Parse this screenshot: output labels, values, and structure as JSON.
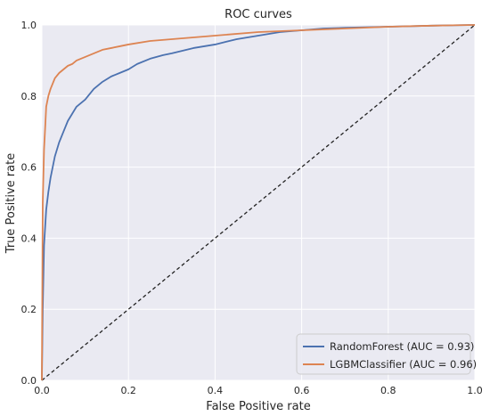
{
  "chart_data": {
    "type": "line",
    "title": "ROC curves",
    "xlabel": "False Positive rate",
    "ylabel": "True Positive rate",
    "xlim": [
      0.0,
      1.0
    ],
    "ylim": [
      0.0,
      1.0
    ],
    "grid": true,
    "legend_position": "lower-right",
    "background_color": "#eaeaf2",
    "x_ticks": [
      0.0,
      0.2,
      0.4,
      0.6,
      0.8,
      1.0
    ],
    "y_ticks": [
      0.0,
      0.2,
      0.4,
      0.6,
      0.8,
      1.0
    ],
    "x_tick_labels": [
      "0.0",
      "0.2",
      "0.4",
      "0.6",
      "0.8",
      "1.0"
    ],
    "y_tick_labels": [
      "0.0",
      "0.2",
      "0.4",
      "0.6",
      "0.8",
      "1.0"
    ],
    "series": [
      {
        "name": "RandomForest (AUC = 0.93)",
        "color": "#4c72b0",
        "x": [
          0.0,
          0.002,
          0.005,
          0.01,
          0.015,
          0.02,
          0.03,
          0.04,
          0.05,
          0.06,
          0.07,
          0.08,
          0.09,
          0.1,
          0.12,
          0.14,
          0.16,
          0.18,
          0.2,
          0.22,
          0.25,
          0.28,
          0.3,
          0.35,
          0.4,
          0.45,
          0.5,
          0.55,
          0.6,
          0.65,
          0.7,
          0.8,
          0.9,
          1.0
        ],
        "y": [
          0.0,
          0.2,
          0.38,
          0.48,
          0.53,
          0.57,
          0.63,
          0.67,
          0.7,
          0.73,
          0.75,
          0.77,
          0.78,
          0.79,
          0.82,
          0.84,
          0.855,
          0.865,
          0.875,
          0.89,
          0.905,
          0.915,
          0.92,
          0.935,
          0.945,
          0.96,
          0.97,
          0.98,
          0.985,
          0.99,
          0.992,
          0.995,
          0.998,
          1.0
        ]
      },
      {
        "name": "LGBMClassifier (AUC = 0.96)",
        "color": "#dd8452",
        "x": [
          0.0,
          0.002,
          0.005,
          0.008,
          0.01,
          0.015,
          0.02,
          0.03,
          0.04,
          0.05,
          0.06,
          0.07,
          0.08,
          0.1,
          0.12,
          0.14,
          0.16,
          0.18,
          0.2,
          0.25,
          0.3,
          0.35,
          0.4,
          0.5,
          0.6,
          0.7,
          0.8,
          0.9,
          1.0
        ],
        "y": [
          0.0,
          0.5,
          0.65,
          0.72,
          0.77,
          0.8,
          0.82,
          0.85,
          0.865,
          0.875,
          0.885,
          0.89,
          0.9,
          0.91,
          0.92,
          0.93,
          0.935,
          0.94,
          0.945,
          0.955,
          0.96,
          0.965,
          0.97,
          0.98,
          0.985,
          0.99,
          0.995,
          0.998,
          1.0
        ]
      }
    ],
    "reference_line": {
      "x": [
        0.0,
        1.0
      ],
      "y": [
        0.0,
        1.0
      ],
      "color": "#222222",
      "style": "dashed"
    }
  }
}
